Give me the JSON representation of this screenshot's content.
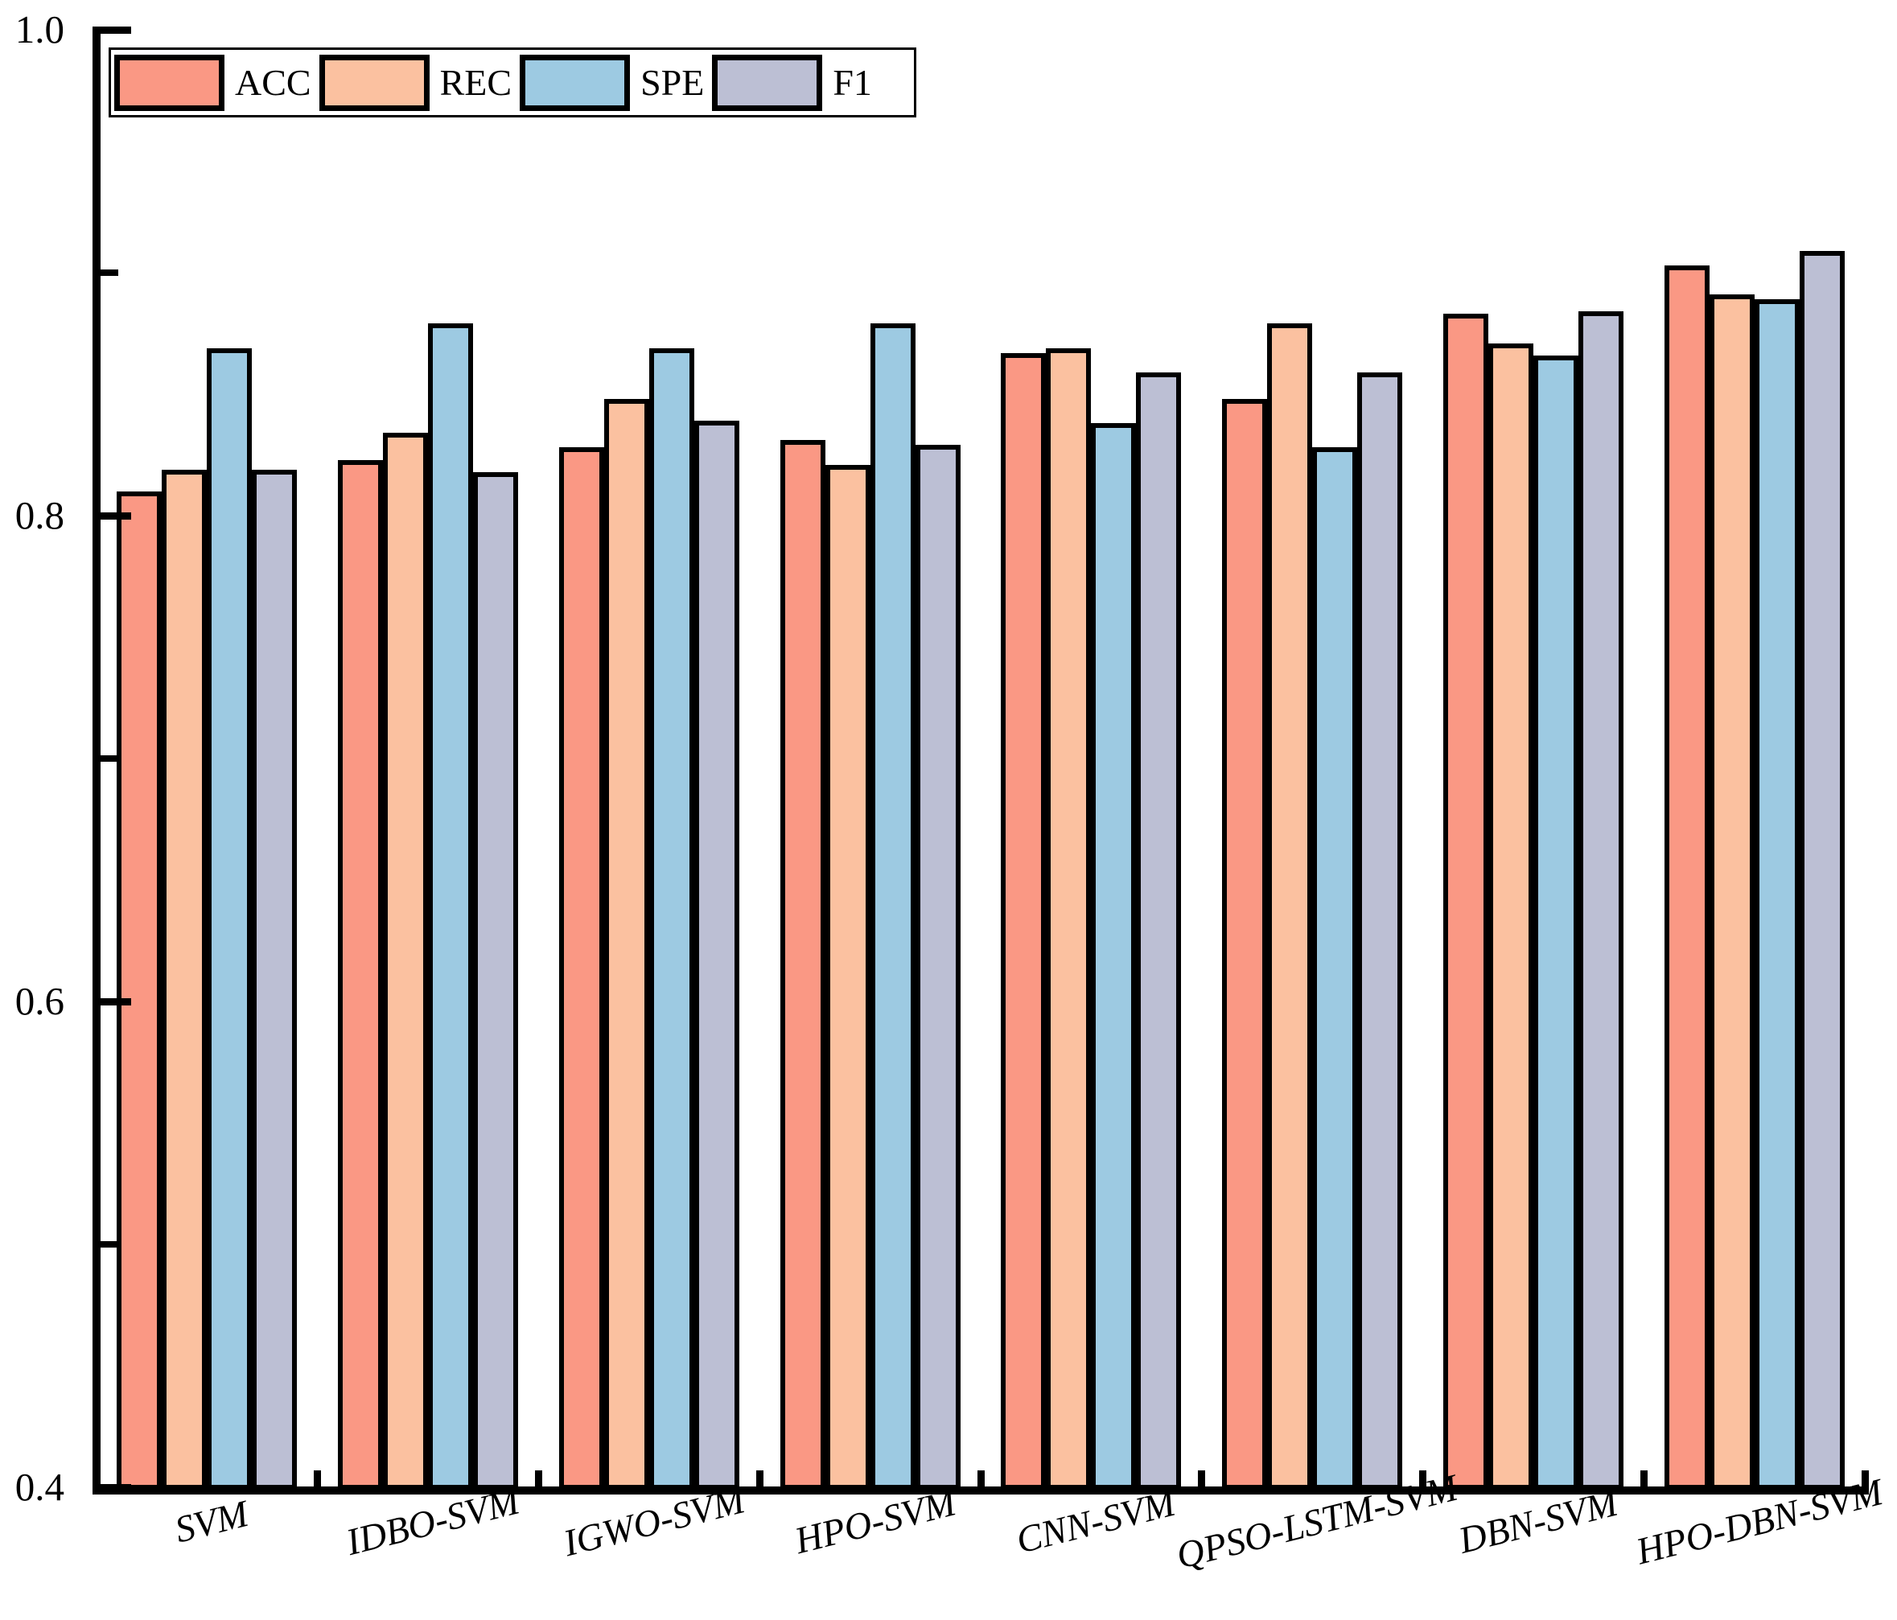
{
  "chart_data": {
    "type": "bar",
    "categories": [
      "SVM",
      "IDBO-SVM",
      "IGWO-SVM",
      "HPO-SVM",
      "CNN-SVM",
      "QPSO-LSTM-SVM",
      "DBN-SVM",
      "HPO-DBN-SVM"
    ],
    "series": [
      {
        "name": "ACC",
        "color": "#FA9884",
        "values": [
          0.81,
          0.823,
          0.828,
          0.831,
          0.867,
          0.848,
          0.883,
          0.903
        ]
      },
      {
        "name": "REC",
        "color": "#FBC1A0",
        "values": [
          0.819,
          0.834,
          0.848,
          0.821,
          0.869,
          0.879,
          0.871,
          0.891
        ]
      },
      {
        "name": "SPE",
        "color": "#9DCAE2",
        "values": [
          0.869,
          0.879,
          0.869,
          0.879,
          0.838,
          0.828,
          0.866,
          0.889
        ]
      },
      {
        "name": "F1",
        "color": "#BCBFD4",
        "values": [
          0.819,
          0.818,
          0.839,
          0.829,
          0.859,
          0.859,
          0.884,
          0.909
        ]
      }
    ],
    "title": "",
    "xlabel": "",
    "ylabel": "",
    "ylim": [
      0.4,
      1.0
    ],
    "y_major_ticks": [
      1.0,
      0.8,
      0.6,
      0.4
    ],
    "y_major_tick_labels": [
      "1.0",
      "0.8",
      "0.6",
      "0.4"
    ],
    "y_minor_ticks": [
      0.9,
      0.7,
      0.5
    ],
    "grid": "off",
    "legend_position": "upper-left",
    "bar_edge_color": "#000000",
    "axis_color": "#000000"
  }
}
